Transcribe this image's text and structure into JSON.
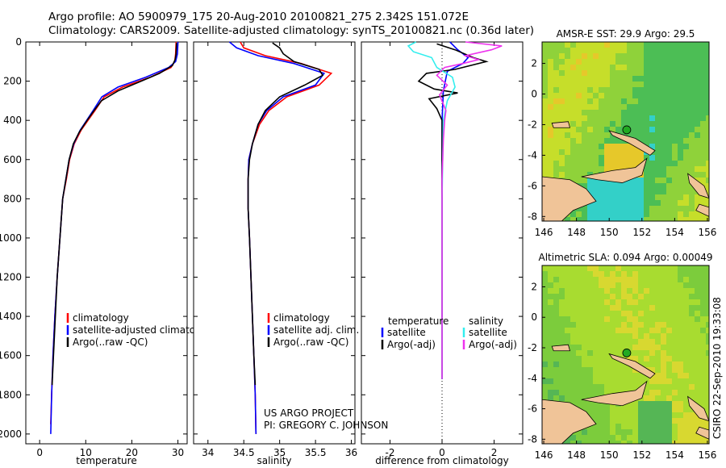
{
  "header": {
    "line1": "Argo profile: AO 5900979_175 20-Aug-2010 20100821_275 2.342S 151.072E",
    "line2": "Climatology: CARS2009. Satellite-adjusted climatology: synTS_20100821.nc (0.36d later)"
  },
  "stamp": "CSIRO 22-Sep-2010 19:33:08",
  "credit": {
    "line1": "US ARGO PROJECT",
    "line2": "PI: GREGORY C. JOHNSON"
  },
  "colors": {
    "red": "#ff0000",
    "blue": "#0000ff",
    "black": "#000000",
    "cyan": "#33eeee",
    "magenta": "#ee33ee"
  },
  "chart_data": [
    {
      "type": "line",
      "xlabel": "temperature",
      "x_ticks": [
        0,
        10,
        20,
        30
      ],
      "y_ticks": [
        0,
        200,
        400,
        600,
        800,
        1000,
        1200,
        1400,
        1600,
        1800,
        2000
      ],
      "ylim": [
        2050,
        0
      ],
      "xlim": [
        -3,
        32
      ],
      "legend": [
        "climatology",
        "satellite-adjusted climatology",
        "Argo(..raw -QC)"
      ],
      "series": [
        {
          "name": "climatology",
          "color": "#ff0000",
          "points": [
            [
              29.6,
              0
            ],
            [
              29.5,
              60
            ],
            [
              29.3,
              100
            ],
            [
              28.5,
              130
            ],
            [
              24,
              180
            ],
            [
              18,
              230
            ],
            [
              14,
              280
            ],
            [
              12,
              350
            ],
            [
              10.5,
              400
            ],
            [
              9,
              450
            ],
            [
              7.5,
              520
            ],
            [
              6.5,
              600
            ],
            [
              5.8,
              700
            ],
            [
              5,
              800
            ],
            [
              4.4,
              1000
            ],
            [
              3.8,
              1200
            ],
            [
              3.3,
              1400
            ],
            [
              2.9,
              1600
            ],
            [
              2.6,
              1800
            ],
            [
              2.4,
              1950
            ]
          ]
        },
        {
          "name": "satellite-adjusted climatology",
          "color": "#0000ff",
          "points": [
            [
              30,
              0
            ],
            [
              29.9,
              60
            ],
            [
              29.5,
              100
            ],
            [
              28,
              130
            ],
            [
              23,
              180
            ],
            [
              17,
              230
            ],
            [
              13.5,
              280
            ],
            [
              11.6,
              350
            ],
            [
              10.2,
              400
            ],
            [
              8.8,
              450
            ],
            [
              7.4,
              520
            ],
            [
              6.4,
              600
            ],
            [
              5.7,
              700
            ],
            [
              5,
              800
            ],
            [
              4.4,
              1000
            ],
            [
              3.8,
              1200
            ],
            [
              3.3,
              1400
            ],
            [
              2.9,
              1600
            ],
            [
              2.6,
              1800
            ],
            [
              2.4,
              2000
            ]
          ]
        },
        {
          "name": "Argo(..raw -QC)",
          "color": "#000000",
          "points": [
            [
              29.7,
              5
            ],
            [
              29.6,
              60
            ],
            [
              29.4,
              90
            ],
            [
              28.8,
              120
            ],
            [
              26,
              160
            ],
            [
              22,
              200
            ],
            [
              17,
              250
            ],
            [
              13.4,
              300
            ],
            [
              11.8,
              350
            ],
            [
              10.3,
              400
            ],
            [
              8.6,
              460
            ],
            [
              7.3,
              520
            ],
            [
              6.4,
              600
            ],
            [
              5.7,
              700
            ],
            [
              5,
              800
            ],
            [
              4.4,
              1000
            ],
            [
              3.8,
              1200
            ],
            [
              3.4,
              1400
            ],
            [
              3,
              1600
            ],
            [
              2.7,
              1750
            ]
          ]
        }
      ]
    },
    {
      "type": "line",
      "xlabel": "salinity",
      "x_ticks": [
        34,
        34.5,
        35,
        35.5,
        36
      ],
      "ylim": [
        2050,
        0
      ],
      "xlim": [
        33.8,
        36.05
      ],
      "legend": [
        "climatology",
        "satellite adj. clim.",
        "Argo(..raw -QC)"
      ],
      "series": [
        {
          "name": "climatology",
          "color": "#ff0000",
          "points": [
            [
              34.45,
              0
            ],
            [
              34.5,
              30
            ],
            [
              34.8,
              70
            ],
            [
              35.3,
              110
            ],
            [
              35.72,
              160
            ],
            [
              35.55,
              220
            ],
            [
              35.1,
              280
            ],
            [
              34.85,
              350
            ],
            [
              34.72,
              420
            ],
            [
              34.62,
              520
            ],
            [
              34.57,
              600
            ],
            [
              34.56,
              700
            ],
            [
              34.56,
              850
            ],
            [
              34.58,
              1000
            ],
            [
              34.6,
              1200
            ],
            [
              34.62,
              1400
            ],
            [
              34.64,
              1600
            ],
            [
              34.66,
              1800
            ],
            [
              34.67,
              2000
            ]
          ]
        },
        {
          "name": "satellite adj. clim.",
          "color": "#0000ff",
          "points": [
            [
              34.3,
              0
            ],
            [
              34.4,
              30
            ],
            [
              34.7,
              70
            ],
            [
              35.2,
              110
            ],
            [
              35.62,
              160
            ],
            [
              35.5,
              220
            ],
            [
              35.05,
              280
            ],
            [
              34.82,
              350
            ],
            [
              34.7,
              420
            ],
            [
              34.62,
              520
            ],
            [
              34.57,
              600
            ],
            [
              34.56,
              700
            ],
            [
              34.56,
              850
            ],
            [
              34.58,
              1000
            ],
            [
              34.6,
              1200
            ],
            [
              34.62,
              1400
            ],
            [
              34.64,
              1600
            ],
            [
              34.66,
              1800
            ],
            [
              34.67,
              2000
            ]
          ]
        },
        {
          "name": "Argo(..raw -QC)",
          "color": "#000000",
          "points": [
            [
              34.9,
              5
            ],
            [
              35,
              30
            ],
            [
              35.05,
              60
            ],
            [
              35.2,
              100
            ],
            [
              35.55,
              140
            ],
            [
              35.6,
              170
            ],
            [
              35.35,
              220
            ],
            [
              35,
              280
            ],
            [
              34.8,
              350
            ],
            [
              34.7,
              420
            ],
            [
              34.62,
              520
            ],
            [
              34.58,
              600
            ],
            [
              34.56,
              700
            ],
            [
              34.56,
              850
            ],
            [
              34.58,
              1000
            ],
            [
              34.6,
              1200
            ],
            [
              34.62,
              1400
            ],
            [
              34.64,
              1600
            ],
            [
              34.66,
              1750
            ]
          ]
        }
      ]
    },
    {
      "type": "line",
      "xlabel": "difference from climatology",
      "x_ticks": [
        -2,
        0,
        2
      ],
      "ylim": [
        2050,
        0
      ],
      "xlim": [
        -3.1,
        3.1
      ],
      "legend_temperature": {
        "heading": "temperature",
        "items": [
          "satellite",
          "Argo(-adj)"
        ]
      },
      "legend_salinity": {
        "heading": "salinity",
        "items": [
          "satellite",
          "Argo(-adj)"
        ]
      },
      "series": [
        {
          "name": "satellite",
          "color": "#0000ff",
          "points": [
            [
              0.3,
              0
            ],
            [
              0.6,
              40
            ],
            [
              1,
              80
            ],
            [
              0.8,
              110
            ],
            [
              0.2,
              150
            ],
            [
              0.05,
              250
            ],
            [
              0,
              400
            ],
            [
              0,
              800
            ],
            [
              0,
              1200
            ],
            [
              0,
              1600
            ],
            [
              0,
              1720
            ]
          ]
        },
        {
          "name": "Argo(-adj)",
          "color": "#000000",
          "points": [
            [
              -0.2,
              10
            ],
            [
              0.5,
              40
            ],
            [
              1.2,
              80
            ],
            [
              1.7,
              100
            ],
            [
              0.5,
              140
            ],
            [
              -0.6,
              160
            ],
            [
              -0.9,
              200
            ],
            [
              -0.3,
              240
            ],
            [
              0.6,
              260
            ],
            [
              -0.5,
              290
            ],
            [
              -0.2,
              340
            ],
            [
              0,
              400
            ],
            [
              0,
              800
            ],
            [
              0,
              1200
            ],
            [
              0,
              1600
            ],
            [
              0,
              1720
            ]
          ]
        },
        {
          "name": "satellite",
          "color": "#33eeee",
          "points": [
            [
              -1,
              0
            ],
            [
              -1.3,
              20
            ],
            [
              -1.1,
              50
            ],
            [
              -0.4,
              80
            ],
            [
              -0.2,
              130
            ],
            [
              0.4,
              180
            ],
            [
              0.5,
              230
            ],
            [
              0.2,
              300
            ],
            [
              0.05,
              400
            ],
            [
              0,
              800
            ],
            [
              0,
              1200
            ],
            [
              0,
              1600
            ],
            [
              0,
              1720
            ]
          ]
        },
        {
          "name": "Argo(-adj)",
          "color": "#ee33ee",
          "points": [
            [
              0.9,
              0
            ],
            [
              2.3,
              20
            ],
            [
              1.9,
              40
            ],
            [
              0.9,
              70
            ],
            [
              1.4,
              90
            ],
            [
              0.8,
              110
            ],
            [
              0.1,
              130
            ],
            [
              -0.2,
              170
            ],
            [
              0.2,
              220
            ],
            [
              -0.1,
              270
            ],
            [
              0.15,
              350
            ],
            [
              0.1,
              400
            ],
            [
              0.05,
              500
            ],
            [
              0,
              700
            ],
            [
              0,
              1000
            ],
            [
              0,
              1300
            ],
            [
              0,
              1600
            ],
            [
              0,
              1720
            ]
          ]
        }
      ]
    },
    {
      "type": "heatmap",
      "title": "AMSR-E SST: 29.9 Argo: 29.5",
      "x_ticks": [
        146,
        148,
        150,
        152,
        154,
        156
      ],
      "y_ticks": [
        2,
        0,
        -2,
        -4,
        -6,
        -8
      ],
      "xlim": [
        145.9,
        156.1
      ],
      "ylim": [
        -8.3,
        3.4
      ]
    },
    {
      "type": "heatmap",
      "title": "Altimetric SLA: 0.094 Argo: 0.00049",
      "x_ticks": [
        146,
        148,
        150,
        152,
        154,
        156
      ],
      "y_ticks": [
        2,
        0,
        -2,
        -4,
        -6,
        -8
      ],
      "xlim": [
        145.9,
        156.1
      ],
      "ylim": [
        -8.3,
        3.4
      ]
    }
  ]
}
